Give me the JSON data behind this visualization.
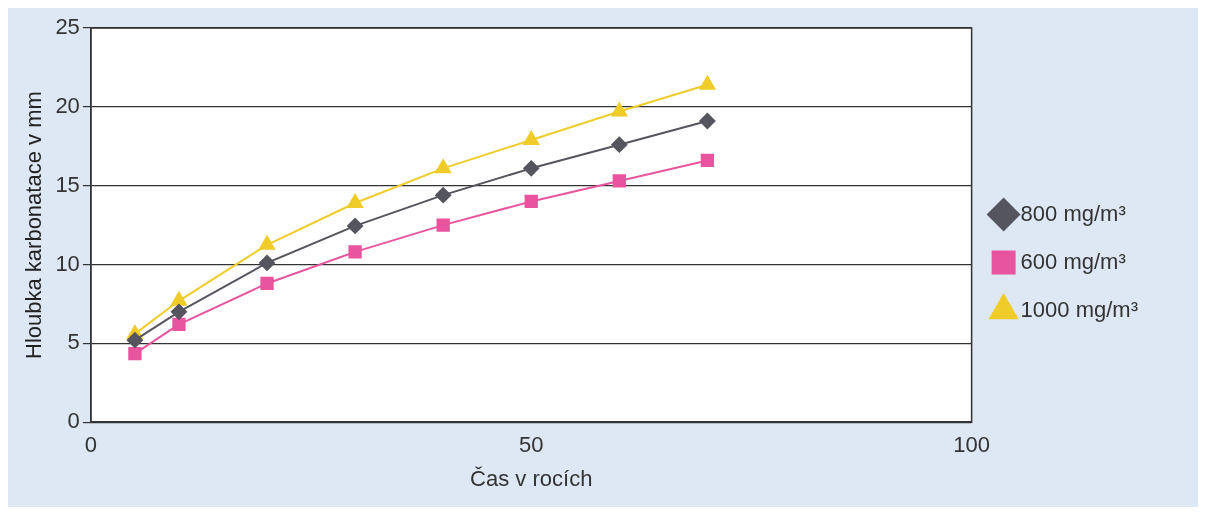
{
  "chart_data": {
    "type": "line",
    "xlabel": "Čas v rocích",
    "ylabel": "Hloubka karbonatace v mm",
    "x": [
      5,
      10,
      20,
      30,
      40,
      50,
      60,
      70
    ],
    "xlim": [
      0,
      100
    ],
    "xticks": [
      0,
      50,
      100
    ],
    "ylim": [
      0,
      25
    ],
    "yticks": [
      0,
      5,
      10,
      15,
      20,
      25
    ],
    "grid": "y",
    "legend": "right",
    "line_style": "solid",
    "series": [
      {
        "name": "800 mg/m³",
        "color": "#55555f",
        "marker": "diamond",
        "values": [
          5.2,
          7.0,
          10.1,
          12.45,
          14.4,
          16.1,
          17.6,
          19.1
        ]
      },
      {
        "name": "600 mg/m³",
        "color": "#e8559e",
        "marker": "square",
        "values": [
          4.35,
          6.2,
          8.8,
          10.8,
          12.5,
          14.0,
          15.3,
          16.6
        ]
      },
      {
        "name": "1000 mg/m³",
        "color": "#f0cc2a",
        "marker": "triangle",
        "values": [
          5.6,
          7.7,
          11.25,
          13.9,
          16.1,
          17.9,
          19.7,
          21.4
        ]
      }
    ]
  }
}
